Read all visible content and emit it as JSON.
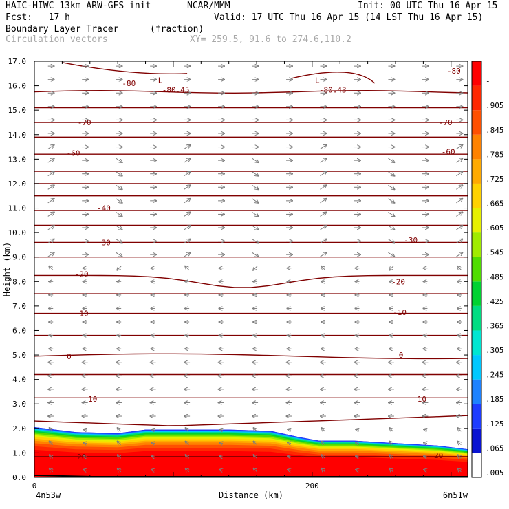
{
  "header": {
    "model": "HAIC-HIWC 13km ARW-GFS init",
    "org": "NCAR/MMM",
    "init": "Init: 00 UTC Thu 16 Apr 15",
    "fcst": "Fcst:   17 h",
    "valid": "Valid: 17 UTC Thu 16 Apr 15 (14 LST Thu 16 Apr 15)",
    "field": "Boundary Layer Tracer",
    "units": "(fraction)",
    "vectors": "Circulation vectors",
    "xy": "XY= 259.5, 91.6 to 274.6,110.2"
  },
  "chart_data": {
    "type": "heatmap",
    "xlabel": "Distance (km)",
    "ylabel": "Height (km)",
    "xlim": [
      0,
      312
    ],
    "ylim": [
      0,
      17
    ],
    "yticks": [
      "0.0",
      "1.0",
      "2.0",
      "3.0",
      "4.0",
      "5.0",
      "6.0",
      "7.0",
      "8.0",
      "9.0",
      "10.0",
      "11.0",
      "12.0",
      "13.0",
      "14.0",
      "15.0",
      "16.0",
      "17.0"
    ],
    "xticks": [
      {
        "value": 0,
        "label": "0"
      },
      {
        "value": 200,
        "label": "200"
      }
    ],
    "x_endpoints": {
      "left": "4n53w",
      "right": "6n51w"
    },
    "colorbar": {
      "labels": [
        ".005",
        ".065",
        ".125",
        ".185",
        ".245",
        ".305",
        ".365",
        ".425",
        ".485",
        ".545",
        ".605",
        ".665",
        ".725",
        ".785",
        ".845",
        ".905",
        "-"
      ],
      "colors": [
        "#ffffff",
        "#0a14d2",
        "#1e3cff",
        "#1e82ff",
        "#00c8ff",
        "#00e6d2",
        "#00dc82",
        "#00d232",
        "#50dc00",
        "#a0eb00",
        "#e6f000",
        "#ffd200",
        "#ffaa00",
        "#ff8200",
        "#ff5000",
        "#ff2800",
        "#ff0000"
      ]
    },
    "tracer_top": {
      "x": [
        0,
        30,
        60,
        80,
        100,
        140,
        170,
        190,
        205,
        230,
        260,
        290,
        312
      ],
      "top_km": [
        2.05,
        1.85,
        1.8,
        1.95,
        1.95,
        1.95,
        1.9,
        1.65,
        1.5,
        1.5,
        1.4,
        1.3,
        1.15
      ]
    },
    "temperature_contours": {
      "levels": [
        20,
        10,
        0,
        -10,
        -20,
        -30,
        -40,
        -60,
        -70,
        -80
      ],
      "labels": [
        {
          "text": "20",
          "x": 34,
          "y": 0.85
        },
        {
          "text": "20",
          "x": 291,
          "y": 0.9
        },
        {
          "text": "10",
          "x": 42,
          "y": 3.2
        },
        {
          "text": "10",
          "x": 279,
          "y": 3.2
        },
        {
          "text": "0",
          "x": 25,
          "y": 4.95
        },
        {
          "text": "0",
          "x": 264,
          "y": 5.0
        },
        {
          "text": "-10",
          "x": 34,
          "y": 6.7
        },
        {
          "text": "-10",
          "x": 263,
          "y": 6.75
        },
        {
          "text": "-20",
          "x": 34,
          "y": 8.3
        },
        {
          "text": "-20",
          "x": 262,
          "y": 8.0
        },
        {
          "text": "-30",
          "x": 50,
          "y": 9.6
        },
        {
          "text": "-30",
          "x": 271,
          "y": 9.7
        },
        {
          "text": "-40",
          "x": 50,
          "y": 11.0
        },
        {
          "text": "-60",
          "x": 28,
          "y": 13.25
        },
        {
          "text": "-60",
          "x": 298,
          "y": 13.3
        },
        {
          "text": "-70",
          "x": 36,
          "y": 14.5
        },
        {
          "text": "-70",
          "x": 296,
          "y": 14.5
        },
        {
          "text": "-80",
          "x": 68,
          "y": 16.1
        },
        {
          "text": "-80",
          "x": 302,
          "y": 16.6
        }
      ],
      "minima": [
        {
          "mark": "L",
          "value": "-80.45",
          "x": 92,
          "y": 15.95
        },
        {
          "mark": "L",
          "value": "-80.43",
          "x": 205,
          "y": 15.95
        }
      ]
    }
  }
}
